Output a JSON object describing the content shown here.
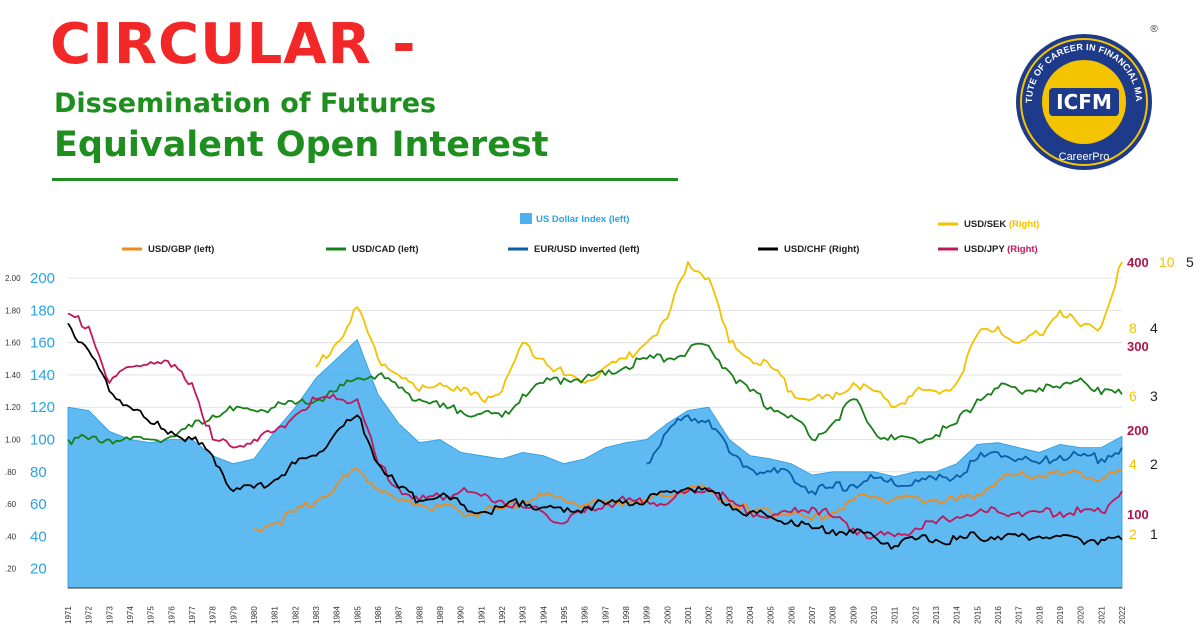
{
  "header": {
    "title": "CIRCULAR -",
    "subtitle_line1": "Dissemination of Futures",
    "subtitle_line2": "Equivalent Open Interest"
  },
  "logo": {
    "ring_text": "INSTITUTE OF CAREER IN FINANCIAL MARKET",
    "badge": "ICFM",
    "bottom_text": "CareerPro",
    "registered": "®",
    "colors": {
      "ring": "#1e3a8a",
      "gold": "#f5c400",
      "badge_text": "#ffffff"
    }
  },
  "chart_data": {
    "type": "line",
    "title": "",
    "years": [
      "1971",
      "1972",
      "1973",
      "1974",
      "1975",
      "1976",
      "1977",
      "1978",
      "1979",
      "1980",
      "1981",
      "1982",
      "1983",
      "1984",
      "1985",
      "1986",
      "1987",
      "1988",
      "1989",
      "1990",
      "1991",
      "1992",
      "1993",
      "1994",
      "1995",
      "1996",
      "1997",
      "1998",
      "1999",
      "2000",
      "2001",
      "2002",
      "2003",
      "2004",
      "2005",
      "2006",
      "2007",
      "2008",
      "2009",
      "2010",
      "2011",
      "2012",
      "2013",
      "2014",
      "2015",
      "2016",
      "2017",
      "2018",
      "2019",
      "2020",
      "2021",
      "2022"
    ],
    "left_axis_outer": [
      ".20",
      ".40",
      ".60",
      ".80",
      "1.00",
      "1.20",
      "1.40",
      "1.60",
      "1.80",
      "2.00"
    ],
    "left_axis_inner": [
      "20",
      "40",
      "60",
      "80",
      "100",
      "120",
      "140",
      "160",
      "180",
      "200"
    ],
    "right_axis_red": [
      "100",
      "200",
      "300",
      "400"
    ],
    "right_axis_gold": [
      "2",
      "4",
      "6",
      "8",
      "10"
    ],
    "right_axis_black": [
      "1",
      "2",
      "3",
      "4",
      "5"
    ],
    "legend": [
      {
        "key": "usd_index",
        "label": "US Dollar Index (left)",
        "color": "#4db3f0",
        "style": "area"
      },
      {
        "key": "usd_sek",
        "label": "USD/SEK",
        "suffix": "(Right)",
        "color": "#f2c200"
      },
      {
        "key": "usd_gbp",
        "label": "USD/GBP (left)",
        "color": "#ef8a1d"
      },
      {
        "key": "usd_cad",
        "label": "USD/CAD (left)",
        "color": "#1a7f1a"
      },
      {
        "key": "eur_usd_inv",
        "label": "EUR/USD inverted (left)",
        "color": "#0c5ea8"
      },
      {
        "key": "usd_chf",
        "label": "USD/CHF (Right)",
        "color": "#000000"
      },
      {
        "key": "usd_jpy",
        "label": "USD/JPY",
        "suffix": "(Right)",
        "color": "#c2185b"
      }
    ],
    "series": [
      {
        "key": "usd_index",
        "values": [
          120,
          118,
          105,
          100,
          98,
          100,
          100,
          90,
          85,
          88,
          105,
          120,
          138,
          150,
          162,
          128,
          110,
          98,
          100,
          92,
          90,
          88,
          92,
          90,
          85,
          88,
          95,
          98,
          100,
          110,
          118,
          120,
          100,
          90,
          88,
          85,
          78,
          80,
          80,
          80,
          77,
          80,
          80,
          85,
          97,
          98,
          95,
          92,
          97,
          95,
          95,
          102
        ]
      },
      {
        "key": "usd_sek",
        "values": [
          null,
          null,
          null,
          null,
          null,
          null,
          null,
          null,
          null,
          null,
          null,
          null,
          145,
          160,
          182,
          150,
          140,
          130,
          135,
          130,
          125,
          130,
          160,
          150,
          140,
          135,
          145,
          150,
          160,
          175,
          210,
          200,
          160,
          150,
          145,
          130,
          125,
          125,
          135,
          130,
          120,
          130,
          130,
          135,
          165,
          170,
          160,
          165,
          180,
          170,
          170,
          210
        ]
      },
      {
        "key": "usd_gbp",
        "values": [
          null,
          null,
          null,
          null,
          null,
          null,
          null,
          null,
          null,
          45,
          48,
          55,
          62,
          72,
          82,
          70,
          62,
          60,
          58,
          55,
          55,
          57,
          62,
          65,
          63,
          60,
          61,
          62,
          62,
          65,
          70,
          68,
          62,
          55,
          55,
          54,
          50,
          55,
          62,
          65,
          63,
          64,
          63,
          62,
          66,
          75,
          78,
          78,
          78,
          80,
          75,
          80
        ]
      },
      {
        "key": "usd_cad",
        "values": [
          100,
          100,
          100,
          100,
          100,
          102,
          108,
          115,
          118,
          118,
          120,
          122,
          124,
          130,
          138,
          140,
          132,
          125,
          120,
          118,
          116,
          114,
          128,
          135,
          138,
          138,
          140,
          145,
          150,
          150,
          155,
          158,
          142,
          130,
          120,
          115,
          100,
          110,
          125,
          105,
          100,
          100,
          103,
          110,
          125,
          132,
          130,
          132,
          132,
          138,
          128,
          128
        ]
      },
      {
        "key": "eur_usd_inv",
        "values": [
          null,
          null,
          null,
          null,
          null,
          null,
          null,
          null,
          null,
          null,
          null,
          null,
          null,
          null,
          null,
          null,
          null,
          null,
          null,
          null,
          null,
          null,
          null,
          null,
          null,
          null,
          null,
          null,
          85,
          105,
          115,
          112,
          92,
          82,
          80,
          78,
          68,
          70,
          72,
          76,
          72,
          75,
          75,
          78,
          88,
          92,
          88,
          85,
          90,
          90,
          88,
          95
        ]
      },
      {
        "key": "usd_chf",
        "values": [
          172,
          155,
          130,
          120,
          110,
          105,
          100,
          90,
          68,
          70,
          75,
          85,
          90,
          105,
          115,
          85,
          70,
          62,
          65,
          60,
          55,
          58,
          62,
          58,
          55,
          58,
          60,
          62,
          62,
          68,
          70,
          68,
          60,
          55,
          52,
          50,
          45,
          44,
          42,
          40,
          34,
          38,
          38,
          38,
          40,
          40,
          40,
          40,
          40,
          38,
          38,
          38
        ]
      },
      {
        "key": "usd_jpy",
        "values": [
          178,
          170,
          135,
          145,
          148,
          145,
          135,
          100,
          95,
          100,
          105,
          115,
          125,
          125,
          125,
          85,
          70,
          62,
          65,
          68,
          65,
          62,
          58,
          55,
          48,
          55,
          60,
          62,
          62,
          60,
          68,
          70,
          62,
          55,
          52,
          55,
          58,
          52,
          45,
          40,
          40,
          45,
          48,
          52,
          55,
          55,
          55,
          55,
          55,
          55,
          55,
          68
        ]
      }
    ]
  }
}
